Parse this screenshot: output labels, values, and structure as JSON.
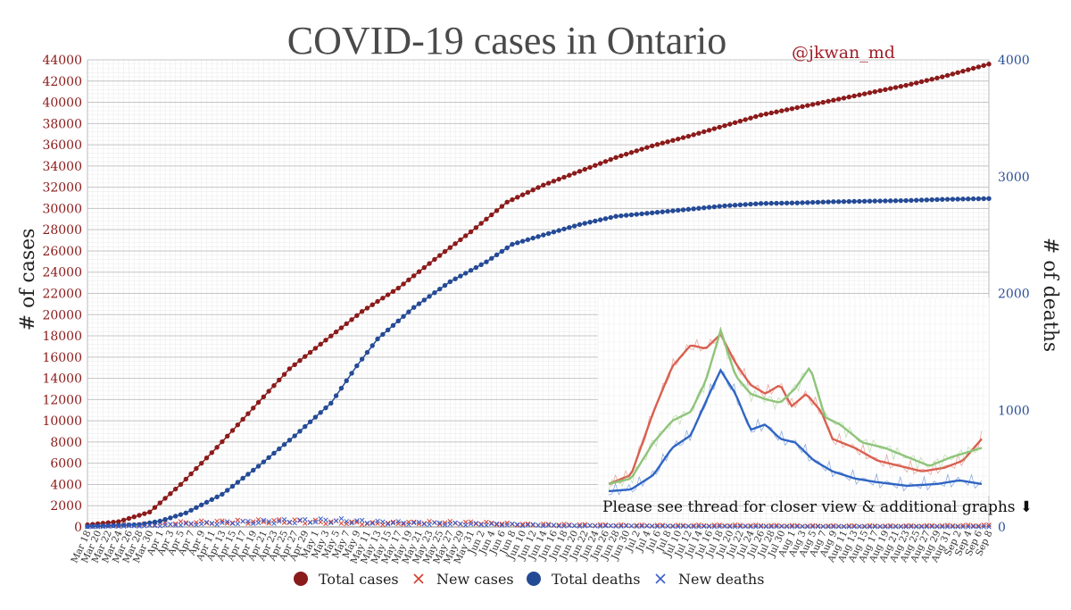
{
  "chart_data": {
    "type": "line",
    "title": "COVID-19 cases in Ontario",
    "credit": "@jkwan_md",
    "ylabel": "# of cases",
    "y2label": "# of deaths",
    "ylim": [
      0,
      44000
    ],
    "y2lim": [
      0,
      4000
    ],
    "yticks": [
      0,
      2000,
      4000,
      6000,
      8000,
      10000,
      12000,
      14000,
      16000,
      18000,
      20000,
      22000,
      24000,
      26000,
      28000,
      30000,
      32000,
      34000,
      36000,
      38000,
      40000,
      42000,
      44000
    ],
    "y2ticks": [
      0,
      1000,
      2000,
      3000,
      4000
    ],
    "xstart": "2020-03-18",
    "xend": "2020-09-08",
    "xtick_labels": [
      "Mar 18",
      "Mar 20",
      "Mar 22",
      "Mar 24",
      "Mar 26",
      "Mar 28",
      "Mar 30",
      "Apr 1",
      "Apr 3",
      "Apr 5",
      "Apr 7",
      "Apr 9",
      "Apr 11",
      "Apr 13",
      "Apr 15",
      "Apr 17",
      "Apr 19",
      "Apr 21",
      "Apr 23",
      "Apr 25",
      "Apr 27",
      "Apr 29",
      "May 1",
      "May 3",
      "May 5",
      "May 7",
      "May 9",
      "May 11",
      "May 13",
      "May 15",
      "May 17",
      "May 19",
      "May 21",
      "May 23",
      "May 25",
      "May 27",
      "May 29",
      "May 31",
      "Jun 2",
      "Jun 4",
      "Jun 6",
      "Jun 8",
      "Jun 10",
      "Jun 12",
      "Jun 14",
      "Jun 16",
      "Jun 18",
      "Jun 20",
      "Jun 22",
      "Jun 24",
      "Jun 26",
      "Jun 28",
      "Jun 30",
      "Jul 2",
      "Jul 4",
      "Jul 6",
      "Jul 8",
      "Jul 10",
      "Jul 12",
      "Jul 14",
      "Jul 16",
      "Jul 18",
      "Jul 20",
      "Jul 22",
      "Jul 24",
      "Jul 26",
      "Jul 28",
      "Jul 30",
      "Aug 1",
      "Aug 3",
      "Aug 5",
      "Aug 7",
      "Aug 9",
      "Aug 11",
      "Aug 13",
      "Aug 15",
      "Aug 17",
      "Aug 19",
      "Aug 21",
      "Aug 23",
      "Aug 25",
      "Aug 27",
      "Aug 29",
      "Aug 31",
      "Sep 2",
      "Sep 4",
      "Sep 6",
      "Sep 8"
    ],
    "grid": true,
    "legend_position": "bottom",
    "series": [
      {
        "name": "Total cases",
        "axis": "left",
        "color": "#8b1a1a",
        "marker": "circle",
        "anchors": [
          [
            "2020-03-18",
            200
          ],
          [
            "2020-03-24",
            500
          ],
          [
            "2020-03-30",
            1400
          ],
          [
            "2020-04-05",
            4000
          ],
          [
            "2020-04-12",
            7500
          ],
          [
            "2020-04-19",
            11200
          ],
          [
            "2020-04-26",
            14900
          ],
          [
            "2020-05-03",
            17600
          ],
          [
            "2020-05-10",
            20300
          ],
          [
            "2020-05-17",
            22500
          ],
          [
            "2020-05-24",
            25200
          ],
          [
            "2020-05-31",
            27800
          ],
          [
            "2020-06-07",
            30600
          ],
          [
            "2020-06-14",
            32200
          ],
          [
            "2020-06-21",
            33500
          ],
          [
            "2020-06-28",
            34800
          ],
          [
            "2020-07-05",
            35900
          ],
          [
            "2020-07-12",
            36800
          ],
          [
            "2020-07-19",
            37800
          ],
          [
            "2020-07-26",
            38800
          ],
          [
            "2020-08-02",
            39500
          ],
          [
            "2020-08-09",
            40200
          ],
          [
            "2020-08-16",
            40900
          ],
          [
            "2020-08-23",
            41600
          ],
          [
            "2020-08-30",
            42400
          ],
          [
            "2020-09-08",
            43600
          ]
        ]
      },
      {
        "name": "New cases",
        "axis": "left",
        "color": "#d44030",
        "marker": "x",
        "anchors": [
          [
            "2020-03-18",
            50
          ],
          [
            "2020-03-28",
            200
          ],
          [
            "2020-04-05",
            380
          ],
          [
            "2020-04-15",
            480
          ],
          [
            "2020-04-25",
            540
          ],
          [
            "2020-05-03",
            460
          ],
          [
            "2020-05-12",
            320
          ],
          [
            "2020-05-22",
            400
          ],
          [
            "2020-06-01",
            380
          ],
          [
            "2020-06-10",
            230
          ],
          [
            "2020-06-20",
            190
          ],
          [
            "2020-06-30",
            150
          ],
          [
            "2020-07-10",
            130
          ],
          [
            "2020-07-20",
            150
          ],
          [
            "2020-07-30",
            120
          ],
          [
            "2020-08-10",
            90
          ],
          [
            "2020-08-25",
            100
          ],
          [
            "2020-09-08",
            150
          ]
        ]
      },
      {
        "name": "Total deaths",
        "axis": "right",
        "color": "#244a96",
        "marker": "circle",
        "anchors": [
          [
            "2020-03-18",
            5
          ],
          [
            "2020-03-28",
            20
          ],
          [
            "2020-04-01",
            50
          ],
          [
            "2020-04-06",
            120
          ],
          [
            "2020-04-13",
            280
          ],
          [
            "2020-04-20",
            520
          ],
          [
            "2020-04-27",
            780
          ],
          [
            "2020-05-04",
            1060
          ],
          [
            "2020-05-09",
            1380
          ],
          [
            "2020-05-13",
            1610
          ],
          [
            "2020-05-20",
            1880
          ],
          [
            "2020-05-27",
            2100
          ],
          [
            "2020-06-03",
            2270
          ],
          [
            "2020-06-08",
            2420
          ],
          [
            "2020-06-14",
            2500
          ],
          [
            "2020-06-21",
            2590
          ],
          [
            "2020-06-28",
            2660
          ],
          [
            "2020-07-05",
            2690
          ],
          [
            "2020-07-12",
            2720
          ],
          [
            "2020-07-19",
            2750
          ],
          [
            "2020-07-26",
            2770
          ],
          [
            "2020-08-02",
            2775
          ],
          [
            "2020-08-09",
            2785
          ],
          [
            "2020-08-16",
            2790
          ],
          [
            "2020-08-23",
            2795
          ],
          [
            "2020-08-30",
            2805
          ],
          [
            "2020-09-08",
            2812
          ]
        ]
      },
      {
        "name": "New deaths",
        "axis": "right",
        "color": "#3a5fcd",
        "marker": "x",
        "anchors": [
          [
            "2020-03-18",
            1
          ],
          [
            "2020-03-30",
            10
          ],
          [
            "2020-04-10",
            30
          ],
          [
            "2020-04-20",
            42
          ],
          [
            "2020-04-28",
            50
          ],
          [
            "2020-05-05",
            55
          ],
          [
            "2020-05-12",
            40
          ],
          [
            "2020-05-20",
            32
          ],
          [
            "2020-05-30",
            25
          ],
          [
            "2020-06-08",
            20
          ],
          [
            "2020-06-18",
            10
          ],
          [
            "2020-06-28",
            8
          ],
          [
            "2020-07-10",
            4
          ],
          [
            "2020-07-25",
            3
          ],
          [
            "2020-08-10",
            2
          ],
          [
            "2020-09-08",
            1
          ]
        ]
      }
    ]
  },
  "inset_note": "Please see thread for closer view & additional graphs ⬇",
  "legend": [
    {
      "label": "Total cases",
      "color": "#8b1a1a",
      "marker": "circle"
    },
    {
      "label": "New cases",
      "color": "#d44030",
      "marker": "x"
    },
    {
      "label": "Total deaths",
      "color": "#244a96",
      "marker": "circle"
    },
    {
      "label": "New deaths",
      "color": "#3a5fcd",
      "marker": "x"
    }
  ],
  "inset_series": [
    {
      "color": "#d96050",
      "anchors": [
        [
          0,
          0.05
        ],
        [
          0.06,
          0.1
        ],
        [
          0.12,
          0.45
        ],
        [
          0.17,
          0.7
        ],
        [
          0.22,
          0.82
        ],
        [
          0.26,
          0.8
        ],
        [
          0.3,
          0.88
        ],
        [
          0.34,
          0.72
        ],
        [
          0.38,
          0.6
        ],
        [
          0.42,
          0.55
        ],
        [
          0.46,
          0.6
        ],
        [
          0.49,
          0.48
        ],
        [
          0.53,
          0.55
        ],
        [
          0.57,
          0.45
        ],
        [
          0.6,
          0.3
        ],
        [
          0.66,
          0.25
        ],
        [
          0.72,
          0.18
        ],
        [
          0.78,
          0.15
        ],
        [
          0.84,
          0.12
        ],
        [
          0.9,
          0.14
        ],
        [
          0.95,
          0.18
        ],
        [
          1,
          0.3
        ]
      ]
    },
    {
      "color": "#8fc47a",
      "anchors": [
        [
          0,
          0.05
        ],
        [
          0.06,
          0.08
        ],
        [
          0.12,
          0.28
        ],
        [
          0.17,
          0.4
        ],
        [
          0.22,
          0.45
        ],
        [
          0.26,
          0.62
        ],
        [
          0.3,
          0.9
        ],
        [
          0.34,
          0.65
        ],
        [
          0.38,
          0.55
        ],
        [
          0.42,
          0.52
        ],
        [
          0.46,
          0.5
        ],
        [
          0.5,
          0.58
        ],
        [
          0.54,
          0.7
        ],
        [
          0.58,
          0.42
        ],
        [
          0.62,
          0.38
        ],
        [
          0.68,
          0.28
        ],
        [
          0.74,
          0.25
        ],
        [
          0.8,
          0.2
        ],
        [
          0.86,
          0.15
        ],
        [
          0.92,
          0.2
        ],
        [
          1,
          0.25
        ]
      ]
    },
    {
      "color": "#2f65c4",
      "anchors": [
        [
          0,
          0.01
        ],
        [
          0.06,
          0.02
        ],
        [
          0.12,
          0.1
        ],
        [
          0.17,
          0.25
        ],
        [
          0.22,
          0.32
        ],
        [
          0.27,
          0.55
        ],
        [
          0.3,
          0.68
        ],
        [
          0.34,
          0.55
        ],
        [
          0.38,
          0.35
        ],
        [
          0.42,
          0.38
        ],
        [
          0.46,
          0.3
        ],
        [
          0.5,
          0.28
        ],
        [
          0.55,
          0.18
        ],
        [
          0.6,
          0.12
        ],
        [
          0.66,
          0.08
        ],
        [
          0.72,
          0.06
        ],
        [
          0.8,
          0.04
        ],
        [
          0.88,
          0.05
        ],
        [
          0.94,
          0.07
        ],
        [
          1,
          0.05
        ]
      ]
    }
  ]
}
